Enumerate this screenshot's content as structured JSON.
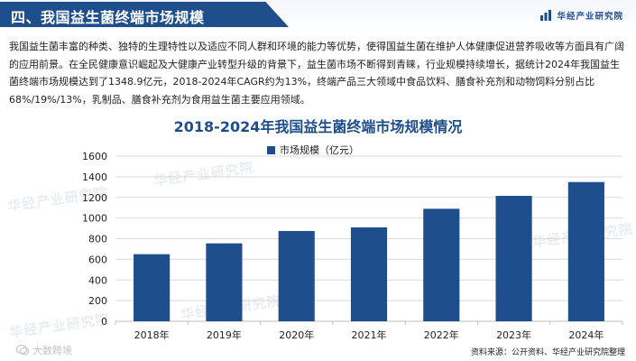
{
  "header": {
    "title": "四、我国益生菌终端市场规模",
    "brand": "华经产业研究院",
    "brand_logo_icon": "bar-logo-icon"
  },
  "intro_text": "我国益生菌丰富的种类、独特的生理特性以及适应不同人群和环境的能力等优势，使得国益生菌在维护人体健康促进营养吸收等方面具有广阔的应用前景。在全民健康意识崛起及大健康产业转型升级的背景下，益生菌市场不断得到青睐，行业规模持续增长，据统计2024年我国益生菌终端市场规模达到了1348.9亿元，2018-2024年CAGR约为13%，终端产品三大领域中食品饮料、膳食补充剂和动物饲料分别占比68%/19%/13%，乳制品、膳食补充剂为食用益生菌主要应用领域。",
  "source": "资料来源：公开资料、华经产业研究院整理",
  "corner_watermark": "大数跨境",
  "colors": {
    "accent": "#1f4e8c",
    "bar": "#1f4e8c",
    "grid": "#d9d9d9",
    "text": "#222222"
  },
  "chart_data": {
    "type": "bar",
    "title": "2018-2024年我国益生菌终端市场规模情况",
    "categories": [
      "2018年",
      "2019年",
      "2020年",
      "2021年",
      "2022年",
      "2023年",
      "2024年"
    ],
    "series": [
      {
        "name": "市场规模（亿元）",
        "values": [
          650,
          755,
          875,
          910,
          1090,
          1215,
          1348.9
        ]
      }
    ],
    "ylim": [
      0,
      1600
    ],
    "yticks": [
      0,
      200,
      400,
      600,
      800,
      1000,
      1200,
      1400,
      1600
    ],
    "xlabel": "",
    "ylabel": "",
    "grid": true,
    "legend": "top-center"
  }
}
